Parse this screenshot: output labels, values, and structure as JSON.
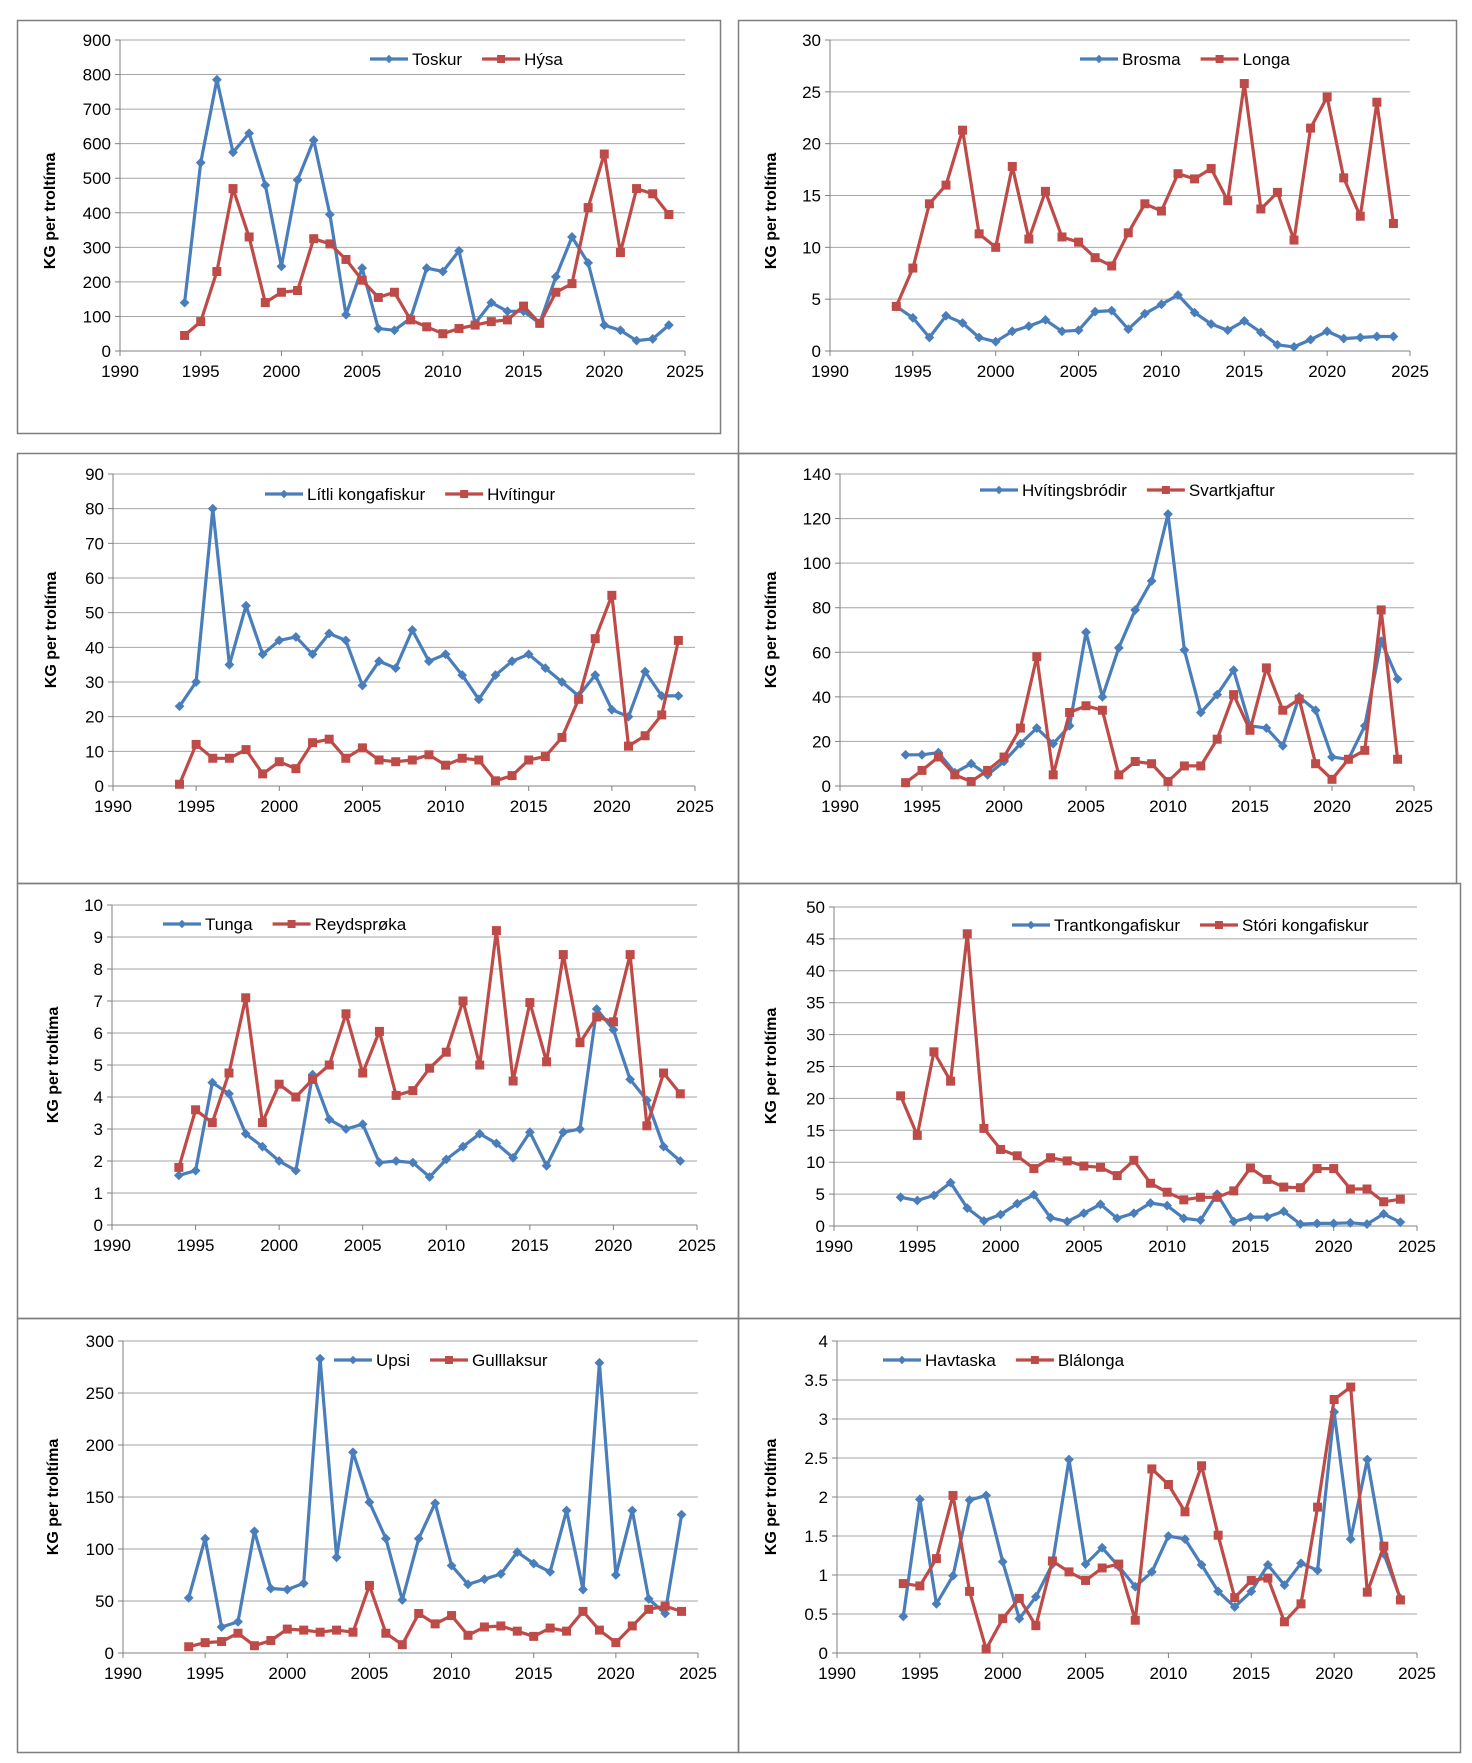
{
  "colors": {
    "series1": "#4a7ebb",
    "series2": "#be4b48",
    "grid": "#a6a6a6",
    "frame": "#7f7f7f"
  },
  "chart_data": [
    {
      "type": "line",
      "ylabel": "KG per troltíma",
      "ylim": [
        0,
        900
      ],
      "ystep": 100,
      "xlim": [
        1990,
        2025
      ],
      "xstep": 5,
      "x": [
        1994,
        1995,
        1996,
        1997,
        1998,
        1999,
        2000,
        2001,
        2002,
        2003,
        2004,
        2005,
        2006,
        2007,
        2008,
        2009,
        2010,
        2011,
        2012,
        2013,
        2014,
        2015,
        2016,
        2017,
        2018,
        2019,
        2020,
        2021,
        2022,
        2023,
        2024
      ],
      "series": [
        {
          "name": "Toskur",
          "marker": "diamond",
          "values": [
            140,
            545,
            785,
            575,
            630,
            480,
            245,
            495,
            610,
            395,
            105,
            240,
            65,
            60,
            95,
            240,
            230,
            290,
            80,
            140,
            115,
            115,
            80,
            215,
            330,
            255,
            75,
            60,
            30,
            35,
            75
          ]
        },
        {
          "name": "Hýsa",
          "marker": "square",
          "values": [
            45,
            85,
            230,
            470,
            330,
            140,
            170,
            175,
            325,
            310,
            265,
            205,
            155,
            170,
            90,
            70,
            50,
            65,
            75,
            85,
            90,
            130,
            80,
            170,
            195,
            415,
            570,
            285,
            470,
            455,
            395
          ]
        }
      ],
      "legend": "top"
    },
    {
      "type": "line",
      "ylabel": "KG per troltíma",
      "ylim": [
        0,
        30
      ],
      "ystep": 5,
      "xlim": [
        1990,
        2025
      ],
      "xstep": 5,
      "x": [
        1994,
        1995,
        1996,
        1997,
        1998,
        1999,
        2000,
        2001,
        2002,
        2003,
        2004,
        2005,
        2006,
        2007,
        2008,
        2009,
        2010,
        2011,
        2012,
        2013,
        2014,
        2015,
        2016,
        2017,
        2018,
        2019,
        2020,
        2021,
        2022,
        2023,
        2024
      ],
      "series": [
        {
          "name": "Brosma",
          "marker": "diamond",
          "values": [
            4.3,
            3.2,
            1.3,
            3.4,
            2.7,
            1.3,
            0.9,
            1.9,
            2.4,
            3.0,
            1.9,
            2.0,
            3.8,
            3.9,
            2.1,
            3.6,
            4.5,
            5.4,
            3.7,
            2.6,
            2.0,
            2.9,
            1.8,
            0.6,
            0.4,
            1.1,
            1.9,
            1.2,
            1.3,
            1.4,
            1.4
          ]
        },
        {
          "name": "Longa",
          "marker": "square",
          "values": [
            4.3,
            8.0,
            14.2,
            16.0,
            21.3,
            11.3,
            10.0,
            17.8,
            10.8,
            15.4,
            11.0,
            10.5,
            9.0,
            8.2,
            11.4,
            14.2,
            13.5,
            17.1,
            16.6,
            17.6,
            14.5,
            25.8,
            13.7,
            15.3,
            10.7,
            21.5,
            24.5,
            16.7,
            13.0,
            24.0,
            12.3
          ]
        }
      ],
      "legend": "top-right"
    },
    {
      "type": "line",
      "ylabel": "KG per troltíma",
      "ylim": [
        0,
        90
      ],
      "ystep": 10,
      "xlim": [
        1990,
        2025
      ],
      "xstep": 5,
      "x": [
        1994,
        1995,
        1996,
        1997,
        1998,
        1999,
        2000,
        2001,
        2002,
        2003,
        2004,
        2005,
        2006,
        2007,
        2008,
        2009,
        2010,
        2011,
        2012,
        2013,
        2014,
        2015,
        2016,
        2017,
        2018,
        2019,
        2020,
        2021,
        2022,
        2023,
        2024
      ],
      "series": [
        {
          "name": "Lítli kongafiskur",
          "marker": "diamond",
          "values": [
            23,
            30,
            80,
            35,
            52,
            38,
            42,
            43,
            38,
            44,
            42,
            29,
            36,
            34,
            45,
            36,
            38,
            32,
            25,
            32,
            36,
            38,
            34,
            30,
            26,
            32,
            22,
            20,
            33,
            26,
            26
          ]
        },
        {
          "name": "Hvítingur",
          "marker": "square",
          "values": [
            0.5,
            12,
            8,
            8,
            10.5,
            3.5,
            7,
            5,
            12.5,
            13.5,
            8,
            11,
            7.5,
            7,
            7.5,
            9,
            6,
            8,
            7.5,
            1.5,
            3,
            7.5,
            8.5,
            14,
            25,
            42.5,
            55,
            11.5,
            14.5,
            20.5,
            42
          ]
        }
      ],
      "legend": "top"
    },
    {
      "type": "line",
      "ylabel": "KG per troltíma",
      "ylim": [
        0,
        140
      ],
      "ystep": 20,
      "xlim": [
        1990,
        2025
      ],
      "xstep": 5,
      "x": [
        1994,
        1995,
        1996,
        1997,
        1998,
        1999,
        2000,
        2001,
        2002,
        2003,
        2004,
        2005,
        2006,
        2007,
        2008,
        2009,
        2010,
        2011,
        2012,
        2013,
        2014,
        2015,
        2016,
        2017,
        2018,
        2019,
        2020,
        2021,
        2022,
        2023,
        2024
      ],
      "series": [
        {
          "name": "Hvítingsbródir",
          "marker": "diamond",
          "values": [
            14,
            14,
            15,
            6,
            10,
            5,
            11,
            19,
            26,
            19,
            27,
            69,
            40,
            62,
            79,
            92,
            122,
            61,
            33,
            41,
            52,
            27,
            26,
            18,
            40,
            34,
            13,
            12,
            27,
            65,
            48
          ]
        },
        {
          "name": "Svartkjaftur",
          "marker": "square",
          "values": [
            1.5,
            7,
            13,
            5,
            2,
            7,
            13,
            26,
            58,
            5,
            33,
            36,
            34,
            5,
            11,
            10,
            2,
            9,
            9,
            21,
            41,
            25,
            53,
            34,
            39,
            10,
            3,
            12,
            16,
            79,
            12
          ]
        }
      ],
      "legend": "top"
    },
    {
      "type": "line",
      "ylabel": "KG per troltíma",
      "ylim": [
        0,
        10
      ],
      "ystep": 1,
      "xlim": [
        1990,
        2025
      ],
      "xstep": 5,
      "x": [
        1994,
        1995,
        1996,
        1997,
        1998,
        1999,
        2000,
        2001,
        2002,
        2003,
        2004,
        2005,
        2006,
        2007,
        2008,
        2009,
        2010,
        2011,
        2012,
        2013,
        2014,
        2015,
        2016,
        2017,
        2018,
        2019,
        2020,
        2021,
        2022,
        2023,
        2024
      ],
      "series": [
        {
          "name": "Tunga",
          "marker": "diamond",
          "values": [
            1.55,
            1.7,
            4.45,
            4.1,
            2.85,
            2.45,
            2.0,
            1.7,
            4.7,
            3.3,
            3.0,
            3.15,
            1.95,
            2.0,
            1.95,
            1.5,
            2.05,
            2.45,
            2.85,
            2.55,
            2.1,
            2.9,
            1.85,
            2.9,
            3.0,
            6.75,
            6.1,
            4.55,
            3.9,
            2.45,
            2.0
          ]
        },
        {
          "name": "Reydsprøka",
          "marker": "square",
          "values": [
            1.8,
            3.6,
            3.2,
            4.75,
            7.1,
            3.2,
            4.4,
            4.0,
            4.55,
            5.0,
            6.6,
            4.75,
            6.05,
            4.05,
            4.2,
            4.9,
            5.4,
            7.0,
            5.0,
            9.2,
            4.5,
            6.95,
            5.1,
            8.45,
            5.7,
            6.5,
            6.35,
            8.45,
            3.1,
            4.75,
            4.1
          ]
        }
      ],
      "legend": "top-left"
    },
    {
      "type": "line",
      "ylabel": "KG per troltíma",
      "ylim": [
        0,
        50
      ],
      "ystep": 5,
      "xlim": [
        1990,
        2025
      ],
      "xstep": 5,
      "x": [
        1994,
        1995,
        1996,
        1997,
        1998,
        1999,
        2000,
        2001,
        2002,
        2003,
        2004,
        2005,
        2006,
        2007,
        2008,
        2009,
        2010,
        2011,
        2012,
        2013,
        2014,
        2015,
        2016,
        2017,
        2018,
        2019,
        2020,
        2021,
        2022,
        2023,
        2024
      ],
      "series": [
        {
          "name": "Trantkongafiskur",
          "marker": "diamond",
          "values": [
            4.5,
            4.0,
            4.8,
            6.8,
            2.8,
            0.8,
            1.8,
            3.5,
            4.9,
            1.3,
            0.7,
            2.0,
            3.4,
            1.2,
            2.0,
            3.6,
            3.2,
            1.2,
            0.9,
            5.0,
            0.7,
            1.4,
            1.4,
            2.3,
            0.3,
            0.4,
            0.4,
            0.5,
            0.3,
            1.9,
            0.6
          ]
        },
        {
          "name": "Stóri kongafiskur",
          "marker": "square",
          "values": [
            20.4,
            14.2,
            27.3,
            22.7,
            45.8,
            15.3,
            12.0,
            11.0,
            9.0,
            10.7,
            10.2,
            9.4,
            9.2,
            7.9,
            10.3,
            6.7,
            5.3,
            4.1,
            4.5,
            4.5,
            5.5,
            9.1,
            7.3,
            6.1,
            6.0,
            9.0,
            9.0,
            5.8,
            5.8,
            3.8,
            4.2
          ]
        }
      ],
      "legend": "top-right"
    },
    {
      "type": "line",
      "ylabel": "KG per troltíma",
      "ylim": [
        0,
        300
      ],
      "ystep": 50,
      "xlim": [
        1990,
        2025
      ],
      "xstep": 5,
      "x": [
        1994,
        1995,
        1996,
        1997,
        1998,
        1999,
        2000,
        2001,
        2002,
        2003,
        2004,
        2005,
        2006,
        2007,
        2008,
        2009,
        2010,
        2011,
        2012,
        2013,
        2014,
        2015,
        2016,
        2017,
        2018,
        2019,
        2020,
        2021,
        2022,
        2023,
        2024
      ],
      "series": [
        {
          "name": "Upsi",
          "marker": "diamond",
          "values": [
            53,
            110,
            25,
            30,
            117,
            62,
            61,
            67,
            283,
            92,
            193,
            145,
            110,
            51,
            110,
            144,
            84,
            66,
            71,
            76,
            97,
            86,
            78,
            137,
            61,
            279,
            75,
            137,
            52,
            38,
            133
          ]
        },
        {
          "name": "Gulllaksur",
          "marker": "square",
          "values": [
            6,
            10,
            11,
            19,
            7,
            12,
            23,
            22,
            20,
            22,
            20,
            65,
            19,
            8,
            38,
            28,
            36,
            17,
            25,
            26,
            21,
            16,
            24,
            21,
            40,
            22,
            10,
            26,
            42,
            45,
            40
          ]
        }
      ],
      "legend": "top"
    },
    {
      "type": "line",
      "ylabel": "KG per troltíma",
      "ylim": [
        0,
        4
      ],
      "ystep": 0.5,
      "xlim": [
        1990,
        2025
      ],
      "xstep": 5,
      "x": [
        1994,
        1995,
        1996,
        1997,
        1998,
        1999,
        2000,
        2001,
        2002,
        2003,
        2004,
        2005,
        2006,
        2007,
        2008,
        2009,
        2010,
        2011,
        2012,
        2013,
        2014,
        2015,
        2016,
        2017,
        2018,
        2019,
        2020,
        2021,
        2022,
        2023,
        2024
      ],
      "series": [
        {
          "name": "Havtaska",
          "marker": "diamond",
          "values": [
            0.47,
            1.97,
            0.63,
            0.99,
            1.96,
            2.02,
            1.17,
            0.44,
            0.72,
            1.14,
            2.48,
            1.14,
            1.35,
            1.11,
            0.85,
            1.04,
            1.5,
            1.46,
            1.13,
            0.79,
            0.59,
            0.79,
            1.13,
            0.87,
            1.15,
            1.06,
            3.09,
            1.46,
            2.48,
            1.27,
            0.7
          ]
        },
        {
          "name": "Blálonga",
          "marker": "square",
          "values": [
            0.89,
            0.86,
            1.21,
            2.02,
            0.79,
            0.05,
            0.44,
            0.7,
            0.35,
            1.18,
            1.04,
            0.93,
            1.09,
            1.14,
            0.42,
            2.36,
            2.16,
            1.81,
            2.4,
            1.51,
            0.71,
            0.93,
            0.96,
            0.4,
            0.63,
            1.87,
            3.25,
            3.41,
            0.78,
            1.37,
            0.68
          ]
        }
      ],
      "legend": "top-left"
    }
  ]
}
